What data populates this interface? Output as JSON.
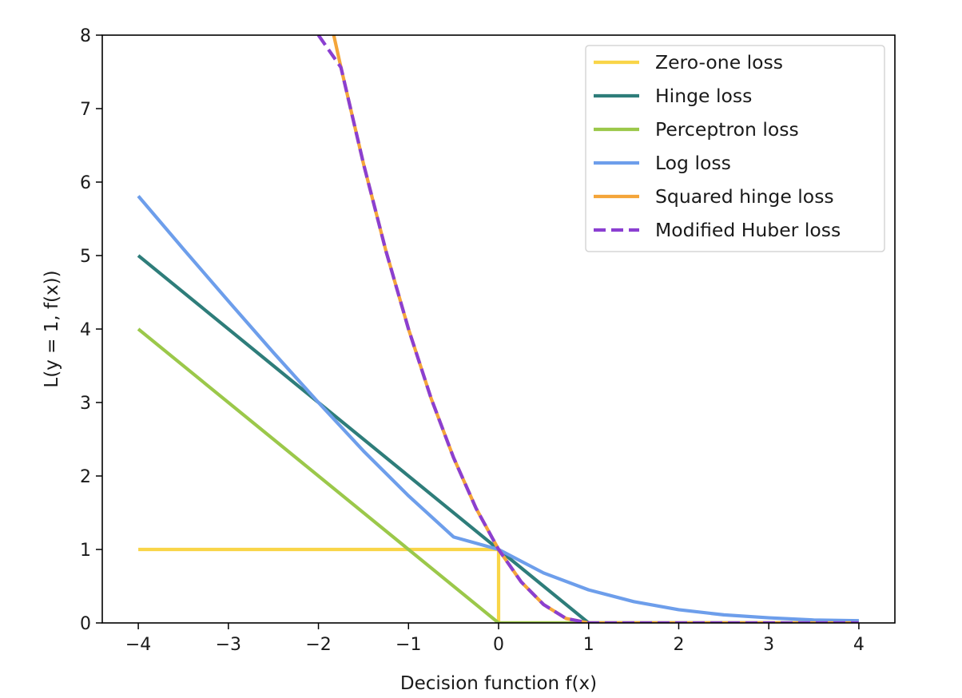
{
  "chart_data": {
    "type": "line",
    "xlabel": "Decision function f(x)",
    "ylabel": "L(y = 1, f(x))",
    "xlim": [
      -4.4,
      4.4
    ],
    "ylim": [
      0,
      8
    ],
    "xticks": [
      -4,
      -3,
      -2,
      -1,
      0,
      1,
      2,
      3,
      4
    ],
    "xtick_labels": [
      "−4",
      "−3",
      "−2",
      "−1",
      "0",
      "1",
      "2",
      "3",
      "4"
    ],
    "yticks": [
      0,
      1,
      2,
      3,
      4,
      5,
      6,
      7,
      8
    ],
    "ytick_labels": [
      "0",
      "1",
      "2",
      "3",
      "4",
      "5",
      "6",
      "7",
      "8"
    ],
    "grid": false,
    "legend_position": "top-right",
    "series": [
      {
        "name": "Zero-one loss",
        "color": "#f9d548",
        "dash": "solid",
        "x": [
          -4,
          0,
          0,
          4
        ],
        "y": [
          1,
          1,
          0,
          0
        ]
      },
      {
        "name": "Hinge loss",
        "color": "#2e7d7a",
        "dash": "solid",
        "x": [
          -4,
          -3,
          -2,
          -1,
          0,
          1,
          2,
          3,
          4
        ],
        "y": [
          5,
          4,
          3,
          2,
          1,
          0,
          0,
          0,
          0
        ]
      },
      {
        "name": "Perceptron loss",
        "color": "#9bc84a",
        "dash": "solid",
        "x": [
          -4,
          -3,
          -2,
          -1,
          0,
          1,
          2,
          3,
          4
        ],
        "y": [
          4,
          3,
          2,
          1,
          0,
          0,
          0,
          0,
          0
        ]
      },
      {
        "name": "Log loss",
        "color": "#6d9eeb",
        "dash": "solid",
        "x": [
          -4,
          -3.5,
          -3,
          -2.5,
          -2,
          -1.5,
          -1,
          -0.5,
          0,
          0.5,
          1,
          1.5,
          2,
          2.5,
          3,
          3.5,
          4
        ],
        "y": [
          5.81,
          5.09,
          4.38,
          3.68,
          3.0,
          2.34,
          1.73,
          1.17,
          1.0,
          0.68,
          0.45,
          0.29,
          0.18,
          0.11,
          0.07,
          0.04,
          0.03
        ]
      },
      {
        "name": "Squared hinge loss",
        "color": "#f4a53a",
        "dash": "solid",
        "x": [
          -1.83,
          -1.75,
          -1.5,
          -1.25,
          -1,
          -0.75,
          -0.5,
          -0.25,
          0,
          0.25,
          0.5,
          0.75,
          1,
          2,
          3,
          4
        ],
        "y": [
          8.0,
          7.56,
          6.25,
          5.06,
          4.0,
          3.06,
          2.25,
          1.56,
          1.0,
          0.56,
          0.25,
          0.06,
          0,
          0,
          0,
          0
        ]
      },
      {
        "name": "Modified Huber loss",
        "color": "#8b3fd1",
        "dash": "dashed",
        "x": [
          -2,
          -1.75,
          -1.5,
          -1.25,
          -1,
          -0.75,
          -0.5,
          -0.25,
          0,
          0.25,
          0.5,
          0.75,
          1,
          2,
          3,
          4
        ],
        "y": [
          8.0,
          7.56,
          6.25,
          5.06,
          4.0,
          3.06,
          2.25,
          1.56,
          1.0,
          0.56,
          0.25,
          0.06,
          0,
          0,
          0,
          0
        ]
      }
    ]
  }
}
